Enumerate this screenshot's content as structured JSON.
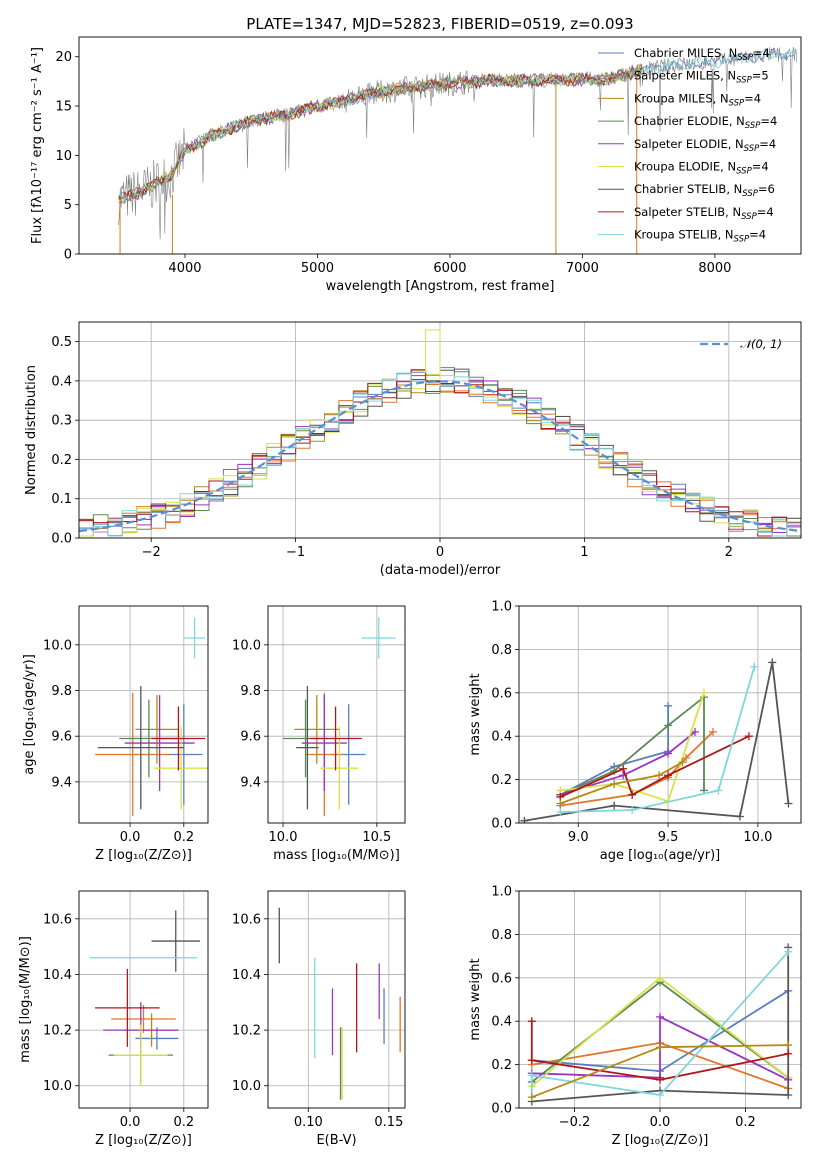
{
  "chart_data": [
    {
      "id": "spectrum",
      "type": "line",
      "title": "PLATE=1347, MJD=52823, FIBERID=0519, z=0.093",
      "xlabel": "wavelength [Angstrom, rest frame]",
      "ylabel": "Flux [fλ10⁻¹⁷ erg cm⁻² s⁻¹ A⁻¹]",
      "xlim": [
        3200,
        8650
      ],
      "ylim": [
        0,
        22
      ],
      "xticks": [
        4000,
        5000,
        6000,
        7000,
        8000
      ],
      "yticks": [
        0,
        5,
        10,
        15,
        20
      ],
      "legend_position": "right",
      "series": [
        {
          "name": "Chabrier MILES, N_SSP=4",
          "label": "Chabrier MILES, N",
          "sub": "SSP",
          "n": "=4",
          "color": "#5b7fbf"
        },
        {
          "name": "Salpeter MILES, N_SSP=5",
          "label": "Salpeter MILES, N",
          "sub": "SSP",
          "n": "=5",
          "color": "#e0762b"
        },
        {
          "name": "Kroupa MILES, N_SSP=4",
          "label": "Kroupa MILES, N",
          "sub": "SSP",
          "n": "=4",
          "color": "#b58a14"
        },
        {
          "name": "Chabrier ELODIE, N_SSP=4",
          "label": "Chabrier ELODIE, N",
          "sub": "SSP",
          "n": "=4",
          "color": "#5a8a55"
        },
        {
          "name": "Salpeter ELODIE, N_SSP=4",
          "label": "Salpeter ELODIE, N",
          "sub": "SSP",
          "n": "=4",
          "color": "#9b35c0"
        },
        {
          "name": "Kroupa ELODIE, N_SSP=4",
          "label": "Kroupa ELODIE, N",
          "sub": "SSP",
          "n": "=4",
          "color": "#d8e04a"
        },
        {
          "name": "Chabrier STELIB, N_SSP=6",
          "label": "Chabrier STELIB, N",
          "sub": "SSP",
          "n": "=6",
          "color": "#555555"
        },
        {
          "name": "Salpeter STELIB, N_SSP=4",
          "label": "Salpeter STELIB, N",
          "sub": "SSP",
          "n": "=4",
          "color": "#b0161e"
        },
        {
          "name": "Kroupa STELIB, N_SSP=4",
          "label": "Kroupa STELIB, N",
          "sub": "SSP",
          "n": "=4",
          "color": "#7fd6dc"
        }
      ],
      "continuum": {
        "x": [
          3500,
          3700,
          3900,
          4000,
          4200,
          4500,
          4800,
          5000,
          5200,
          5500,
          5800,
          6000,
          6300,
          6600,
          6900,
          7200,
          7400,
          7600,
          8000,
          8400
        ],
        "y": [
          5.5,
          6.5,
          8.0,
          10.5,
          12.0,
          13.5,
          14.2,
          15.0,
          15.5,
          16.5,
          17.0,
          17.3,
          17.6,
          17.6,
          17.7,
          17.7,
          18.5,
          19.0,
          19.5,
          20.2
        ]
      }
    },
    {
      "id": "residuals",
      "type": "step",
      "xlabel": "(data-model)/error",
      "ylabel": "Normed distribution",
      "xlim": [
        -2.5,
        2.5
      ],
      "ylim": [
        0,
        0.55
      ],
      "xticks": [
        -2,
        -1,
        0,
        1,
        2
      ],
      "yticks": [
        0.0,
        0.1,
        0.2,
        0.3,
        0.4,
        0.5
      ],
      "legend": "𝒩(0, 1)",
      "legend_position": "top-right",
      "bin_width": 0.1,
      "peak": 0.4,
      "spikes": {
        "-0.5": 0.45,
        "0": 0.46,
        "-0.1": 0.41
      },
      "spike_peak_value": 0.53
    },
    {
      "id": "age-vs-Z",
      "type": "errorbar",
      "xlabel": "Z [log₁₀(Z/Z⊙)]",
      "ylabel": "age  [log₁₀(age/yr)]",
      "xlim": [
        -0.19,
        0.29
      ],
      "ylim": [
        9.22,
        10.17
      ],
      "xticks": [
        0.0,
        0.2
      ],
      "yticks": [
        9.4,
        9.6,
        9.8,
        10.0
      ],
      "points": [
        {
          "x": 0.2,
          "xerr": 0.07,
          "y": 9.52,
          "yerr": 0.22,
          "c": 1
        },
        {
          "x": 0.01,
          "xerr": 0.14,
          "y": 9.52,
          "yerr": 0.27,
          "c": 2
        },
        {
          "x": 0.1,
          "xerr": 0.08,
          "y": 9.63,
          "yerr": 0.15,
          "c": 3
        },
        {
          "x": 0.07,
          "xerr": 0.11,
          "y": 9.59,
          "yerr": 0.17,
          "c": 4
        },
        {
          "x": 0.11,
          "xerr": 0.13,
          "y": 9.57,
          "yerr": 0.21,
          "c": 5
        },
        {
          "x": 0.19,
          "xerr": 0.1,
          "y": 9.46,
          "yerr": 0.18,
          "c": 6
        },
        {
          "x": 0.04,
          "xerr": 0.16,
          "y": 9.55,
          "yerr": 0.27,
          "c": 7
        },
        {
          "x": 0.18,
          "xerr": 0.1,
          "y": 9.59,
          "yerr": 0.14,
          "c": 8
        },
        {
          "x": 0.24,
          "xerr": 0.04,
          "y": 10.03,
          "yerr": 0.09,
          "c": 9
        }
      ]
    },
    {
      "id": "age-vs-mass",
      "type": "errorbar",
      "xlabel": "mass [log₁₀(M/M⊙)]",
      "ylabel": "",
      "xlim": [
        9.92,
        10.65
      ],
      "ylim": [
        9.22,
        10.17
      ],
      "xticks": [
        10.0,
        10.5
      ],
      "yticks": [
        9.4,
        9.6,
        9.8,
        10.0
      ],
      "points": [
        {
          "x": 10.35,
          "xerr": 0.09,
          "y": 9.52,
          "yerr": 0.22,
          "c": 1
        },
        {
          "x": 10.22,
          "xerr": 0.1,
          "y": 9.52,
          "yerr": 0.27,
          "c": 2
        },
        {
          "x": 10.18,
          "xerr": 0.12,
          "y": 9.63,
          "yerr": 0.15,
          "c": 3
        },
        {
          "x": 10.12,
          "xerr": 0.12,
          "y": 9.59,
          "yerr": 0.17,
          "c": 4
        },
        {
          "x": 10.22,
          "xerr": 0.12,
          "y": 9.57,
          "yerr": 0.21,
          "c": 5
        },
        {
          "x": 10.3,
          "xerr": 0.1,
          "y": 9.46,
          "yerr": 0.18,
          "c": 6
        },
        {
          "x": 10.13,
          "xerr": 0.06,
          "y": 9.55,
          "yerr": 0.27,
          "c": 7
        },
        {
          "x": 10.28,
          "xerr": 0.14,
          "y": 9.59,
          "yerr": 0.14,
          "c": 8
        },
        {
          "x": 10.51,
          "xerr": 0.09,
          "y": 10.03,
          "yerr": 0.09,
          "c": 9
        }
      ]
    },
    {
      "id": "massweight-vs-age",
      "type": "line",
      "xlabel": "age  [log₁₀(age/yr)]",
      "ylabel": "mass weight",
      "xlim": [
        8.67,
        10.24
      ],
      "ylim": [
        0.0,
        1.0
      ],
      "xticks": [
        9.0,
        9.5,
        10.0
      ],
      "yticks": [
        0.0,
        0.2,
        0.4,
        0.6,
        0.8,
        1.0
      ],
      "series": [
        {
          "c": 1,
          "x": [
            8.9,
            9.2,
            9.5,
            9.5
          ],
          "y": [
            0.13,
            0.26,
            0.33,
            0.54
          ]
        },
        {
          "c": 2,
          "x": [
            8.9,
            9.3,
            9.5,
            9.6,
            9.75
          ],
          "y": [
            0.08,
            0.13,
            0.21,
            0.3,
            0.42
          ]
        },
        {
          "c": 4,
          "x": [
            8.9,
            9.2,
            9.5,
            9.7,
            9.7
          ],
          "y": [
            0.13,
            0.24,
            0.45,
            0.58,
            0.15
          ]
        },
        {
          "c": 5,
          "x": [
            8.9,
            9.25,
            9.5,
            9.65
          ],
          "y": [
            0.13,
            0.22,
            0.32,
            0.42
          ]
        },
        {
          "c": 6,
          "x": [
            8.9,
            9.2,
            9.5,
            9.7
          ],
          "y": [
            0.15,
            0.18,
            0.1,
            0.6
          ]
        },
        {
          "c": 7,
          "x": [
            8.7,
            9.2,
            9.9,
            10.08,
            10.17
          ],
          "y": [
            0.01,
            0.08,
            0.03,
            0.74,
            0.09
          ]
        },
        {
          "c": 8,
          "x": [
            8.9,
            9.25,
            9.3,
            9.5,
            9.95
          ],
          "y": [
            0.12,
            0.25,
            0.13,
            0.22,
            0.4
          ]
        },
        {
          "c": 9,
          "x": [
            8.9,
            9.3,
            9.78,
            9.98
          ],
          "y": [
            0.05,
            0.06,
            0.15,
            0.72
          ]
        },
        {
          "c": 3,
          "x": [
            8.9,
            9.2,
            9.45,
            9.58
          ],
          "y": [
            0.09,
            0.18,
            0.22,
            0.28
          ]
        }
      ]
    },
    {
      "id": "mass-vs-Z",
      "type": "errorbar",
      "xlabel": "Z [log₁₀(Z/Z⊙)]",
      "ylabel": "mass [log₁₀(M/M⊙)]",
      "xlim": [
        -0.19,
        0.29
      ],
      "ylim": [
        9.92,
        10.7
      ],
      "xticks": [
        0.0,
        0.2
      ],
      "yticks": [
        10.0,
        10.2,
        10.4,
        10.6
      ],
      "points": [
        {
          "x": 0.1,
          "xerr": 0.08,
          "y": 10.17,
          "yerr": 0.04,
          "c": 1
        },
        {
          "x": 0.05,
          "xerr": 0.12,
          "y": 10.24,
          "yerr": 0.05,
          "c": 2
        },
        {
          "x": 0.08,
          "xerr": 0.1,
          "y": 10.2,
          "yerr": 0.06,
          "c": 3
        },
        {
          "x": 0.04,
          "xerr": 0.12,
          "y": 10.11,
          "yerr": 0.1,
          "c": 4
        },
        {
          "x": 0.04,
          "xerr": 0.14,
          "y": 10.2,
          "yerr": 0.1,
          "c": 5
        },
        {
          "x": 0.04,
          "xerr": 0.1,
          "y": 10.11,
          "yerr": 0.11,
          "c": 6
        },
        {
          "x": 0.17,
          "xerr": 0.09,
          "y": 10.52,
          "yerr": 0.11,
          "c": 7
        },
        {
          "x": -0.01,
          "xerr": 0.12,
          "y": 10.28,
          "yerr": 0.14,
          "c": 8
        },
        {
          "x": 0.05,
          "xerr": 0.2,
          "y": 10.46,
          "yerr": 0.0,
          "c": 9
        }
      ]
    },
    {
      "id": "mass-vs-EBV",
      "type": "errorbar",
      "xlabel": "E(B-V)",
      "ylabel": "",
      "xlim": [
        0.075,
        0.16
      ],
      "ylim": [
        9.92,
        10.7
      ],
      "xticks": [
        0.1,
        0.15
      ],
      "yticks": [
        10.0,
        10.2,
        10.4,
        10.6
      ],
      "points": [
        {
          "x": 0.147,
          "y": 10.25,
          "yerr": 0.1,
          "c": 1
        },
        {
          "x": 0.157,
          "y": 10.22,
          "yerr": 0.1,
          "c": 2
        },
        {
          "x": 0.12,
          "y": 10.08,
          "yerr": 0.13,
          "c": 4
        },
        {
          "x": 0.115,
          "y": 10.23,
          "yerr": 0.12,
          "c": 5
        },
        {
          "x": 0.121,
          "y": 10.08,
          "yerr": 0.13,
          "c": 6
        },
        {
          "x": 0.082,
          "y": 10.54,
          "yerr": 0.1,
          "c": 7
        },
        {
          "x": 0.13,
          "y": 10.28,
          "yerr": 0.16,
          "c": 8
        },
        {
          "x": 0.104,
          "y": 10.28,
          "yerr": 0.18,
          "c": 9
        },
        {
          "x": 0.144,
          "y": 10.34,
          "yerr": 0.1,
          "c": 5
        }
      ]
    },
    {
      "id": "massweight-vs-Z",
      "type": "line",
      "xlabel": "Z [log₁₀(Z/Z⊙)]",
      "ylabel": "mass weight",
      "xlim": [
        -0.33,
        0.33
      ],
      "ylim": [
        0.0,
        1.0
      ],
      "xticks": [
        -0.2,
        0.0,
        0.2
      ],
      "yticks": [
        0.0,
        0.2,
        0.4,
        0.6,
        0.8,
        1.0
      ],
      "series": [
        {
          "c": 1,
          "x": [
            -0.3,
            0.0,
            0.3
          ],
          "y": [
            0.22,
            0.17,
            0.54
          ]
        },
        {
          "c": 2,
          "x": [
            -0.3,
            0.0,
            0.3
          ],
          "y": [
            0.2,
            0.3,
            0.09
          ]
        },
        {
          "c": 4,
          "x": [
            -0.3,
            0.0,
            0.3
          ],
          "y": [
            0.12,
            0.58,
            0.14
          ]
        },
        {
          "c": 5,
          "x": [
            -0.3,
            0.0,
            0.0,
            0.3
          ],
          "y": [
            0.16,
            0.14,
            0.42,
            0.13
          ]
        },
        {
          "c": 6,
          "x": [
            -0.3,
            0.0,
            0.3
          ],
          "y": [
            0.1,
            0.6,
            0.14
          ]
        },
        {
          "c": 7,
          "x": [
            -0.3,
            0.0,
            0.3,
            0.3
          ],
          "y": [
            0.03,
            0.08,
            0.06,
            0.74
          ]
        },
        {
          "c": 8,
          "x": [
            -0.3,
            -0.3,
            0.0,
            0.3
          ],
          "y": [
            0.4,
            0.22,
            0.13,
            0.25
          ]
        },
        {
          "c": 9,
          "x": [
            -0.3,
            -0.3,
            0.0,
            0.3
          ],
          "y": [
            0.05,
            0.15,
            0.06,
            0.72
          ]
        },
        {
          "c": 3,
          "x": [
            -0.3,
            0.0,
            0.3
          ],
          "y": [
            0.05,
            0.28,
            0.29
          ]
        }
      ]
    }
  ]
}
